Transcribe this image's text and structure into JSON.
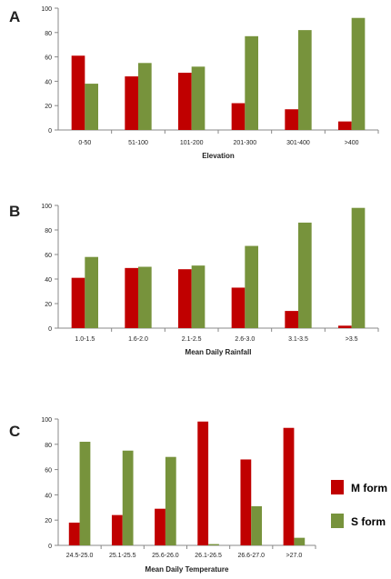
{
  "legend": {
    "m_label": "M form",
    "s_label": "S form"
  },
  "colors": {
    "m": "#c00000",
    "s": "#77933c",
    "axis": "#888888",
    "text": "#222222"
  },
  "chart_data": [
    {
      "type": "bar",
      "panel_label": "A",
      "xlabel": "Elevation",
      "ylabel": "",
      "ylim": [
        0,
        100
      ],
      "yticks": [
        0,
        20,
        40,
        60,
        80,
        100
      ],
      "categories": [
        "0-50",
        "51-100",
        "101-200",
        "201-300",
        "301-400",
        ">400"
      ],
      "series": [
        {
          "name": "M form",
          "values": [
            61,
            44,
            47,
            22,
            17,
            7
          ]
        },
        {
          "name": "S form",
          "values": [
            38,
            55,
            52,
            77,
            82,
            92
          ]
        }
      ]
    },
    {
      "type": "bar",
      "panel_label": "B",
      "xlabel": "Mean Daily Rainfall",
      "ylabel": "",
      "ylim": [
        0,
        100
      ],
      "yticks": [
        0,
        20,
        40,
        60,
        80,
        100
      ],
      "categories": [
        "1.0-1.5",
        "1.6-2.0",
        "2.1-2.5",
        "2.6-3.0",
        "3.1-3.5",
        ">3.5"
      ],
      "series": [
        {
          "name": "M form",
          "values": [
            41,
            49,
            48,
            33,
            14,
            2
          ]
        },
        {
          "name": "S form",
          "values": [
            58,
            50,
            51,
            67,
            86,
            98
          ]
        }
      ]
    },
    {
      "type": "bar",
      "panel_label": "C",
      "xlabel": "Mean Daily Temperature",
      "ylabel": "",
      "ylim": [
        0,
        100
      ],
      "yticks": [
        0,
        20,
        40,
        60,
        80,
        100
      ],
      "categories": [
        "24.5-25.0",
        "25.1-25.5",
        "25.6-26.0",
        "26.1-26.5",
        "26.6-27.0",
        ">27.0"
      ],
      "series": [
        {
          "name": "M form",
          "values": [
            18,
            24,
            29,
            98,
            68,
            93
          ]
        },
        {
          "name": "S form",
          "values": [
            82,
            75,
            70,
            1,
            31,
            6
          ]
        }
      ]
    }
  ]
}
